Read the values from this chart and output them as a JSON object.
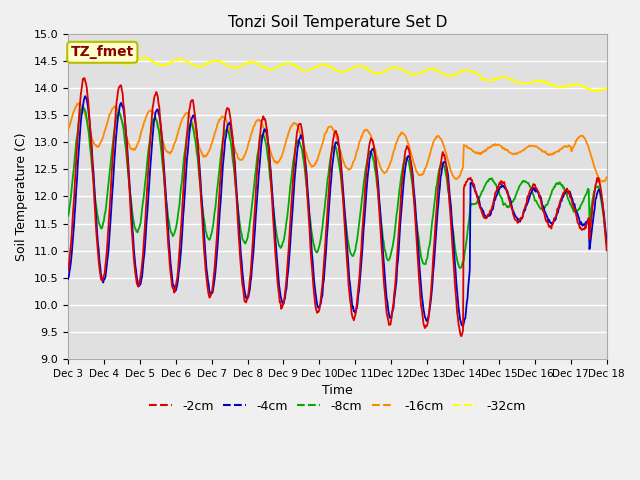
{
  "title": "Tonzi Soil Temperature Set D",
  "ylabel": "Soil Temperature (C)",
  "xlabel": "Time",
  "ylim": [
    9.0,
    15.0
  ],
  "yticks": [
    9.0,
    9.5,
    10.0,
    10.5,
    11.0,
    11.5,
    12.0,
    12.5,
    13.0,
    13.5,
    14.0,
    14.5,
    15.0
  ],
  "xtick_labels": [
    "Dec 3",
    "Dec 4",
    "Dec 5",
    "Dec 6",
    "Dec 7",
    "Dec 8",
    "Dec 9",
    "Dec 10",
    "Dec 11",
    "Dec 12",
    "Dec 13",
    "Dec 14",
    "Dec 15",
    "Dec 16",
    "Dec 17",
    "Dec 18"
  ],
  "colors": {
    "-2cm": "#dd0000",
    "-4cm": "#0000cc",
    "-8cm": "#00aa00",
    "-16cm": "#ff8800",
    "-32cm": "#ffff00"
  },
  "fig_bg_color": "#f0f0f0",
  "ax_bg_color": "#e0e0e0",
  "grid_color": "#ffffff",
  "annotation_text": "TZ_fmet",
  "annotation_bg": "#ffffcc",
  "annotation_border": "#bbbb00"
}
